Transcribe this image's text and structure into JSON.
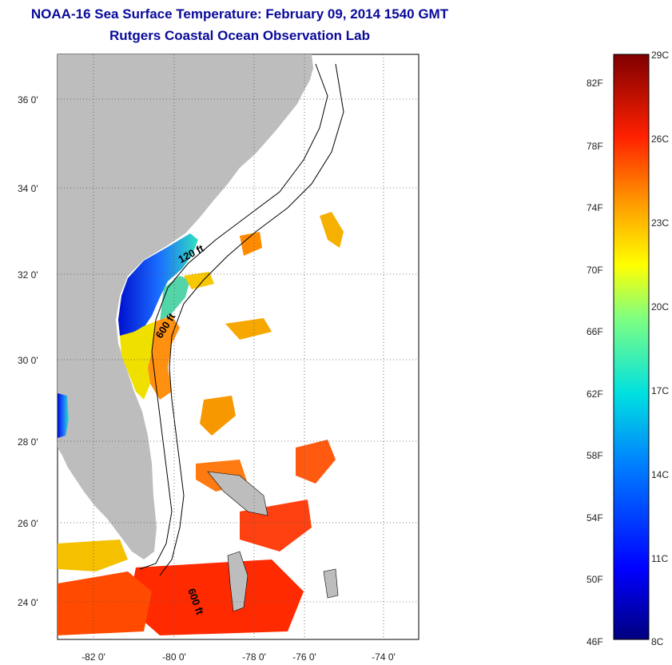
{
  "title": "NOAA-16 Sea Surface Temperature:  February 09, 2014 1540 GMT",
  "subtitle": "Rutgers Coastal Ocean Observation Lab",
  "lat_labels": [
    "36 0'",
    "34 0'",
    "32 0'",
    "30 0'",
    "28 0'",
    "26 0'",
    "24 0'"
  ],
  "lon_labels": [
    "-82 0'",
    "-80 0'",
    "-78 0'",
    "-76 0'",
    "-74 0'"
  ],
  "contour_labels": [
    "120 ft",
    "600 ft",
    "600 ft"
  ],
  "colorbar": {
    "fahrenheit": [
      "82F",
      "78F",
      "74F",
      "70F",
      "66F",
      "62F",
      "58F",
      "54F",
      "50F",
      "46F"
    ],
    "celsius": [
      "29C",
      "26C",
      "23C",
      "20C",
      "17C",
      "14C",
      "11C",
      "8C"
    ]
  },
  "colors": {
    "land": "#bdbdbd",
    "title": "#0a0a9a",
    "cold": "#00008b",
    "warm": "#7f0000"
  }
}
